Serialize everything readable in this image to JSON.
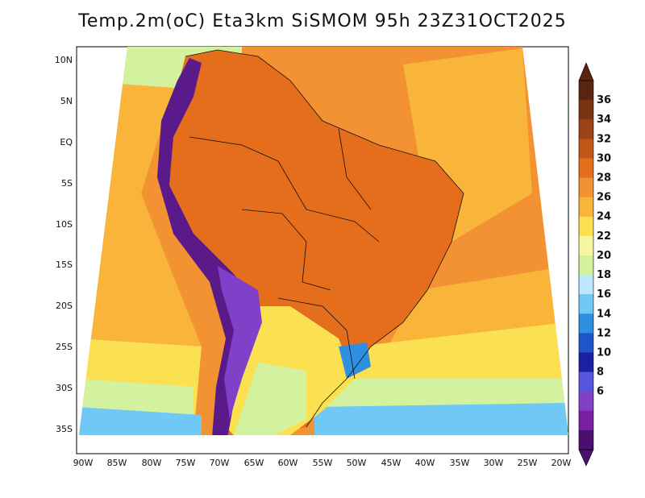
{
  "title": "Temp.2m(oC) Eta3km SiSMOM 95h 23Z31OCT2025",
  "lat_labels": [
    "10N",
    "5N",
    "EQ",
    "5S",
    "10S",
    "15S",
    "20S",
    "25S",
    "30S",
    "35S"
  ],
  "lon_labels": [
    "90W",
    "85W",
    "80W",
    "75W",
    "70W",
    "65W",
    "60W",
    "55W",
    "50W",
    "45W",
    "40W",
    "35W",
    "30W",
    "25W",
    "20W"
  ],
  "colorbar": {
    "labels": [
      "36",
      "34",
      "32",
      "30",
      "28",
      "26",
      "24",
      "22",
      "20",
      "18",
      "16",
      "14",
      "12",
      "10",
      "8",
      "6"
    ],
    "colors": [
      "#5a2410",
      "#7b3413",
      "#9b4216",
      "#c15619",
      "#e56e1c",
      "#f29233",
      "#f8b53a",
      "#fbe052",
      "#f6f6a0",
      "#d2f2a0",
      "#bfe6ff",
      "#6fc8f5",
      "#2f8fe0",
      "#1f55c8",
      "#1c20a0",
      "#5555e0",
      "#8040c8",
      "#7a1fa0",
      "#4a1070"
    ]
  },
  "colors": {
    "ocean_warm": "#f8b53a",
    "ocean_mid": "#fbe052",
    "land_hot": "#e56e1c",
    "andes": "#5a1a8a"
  }
}
